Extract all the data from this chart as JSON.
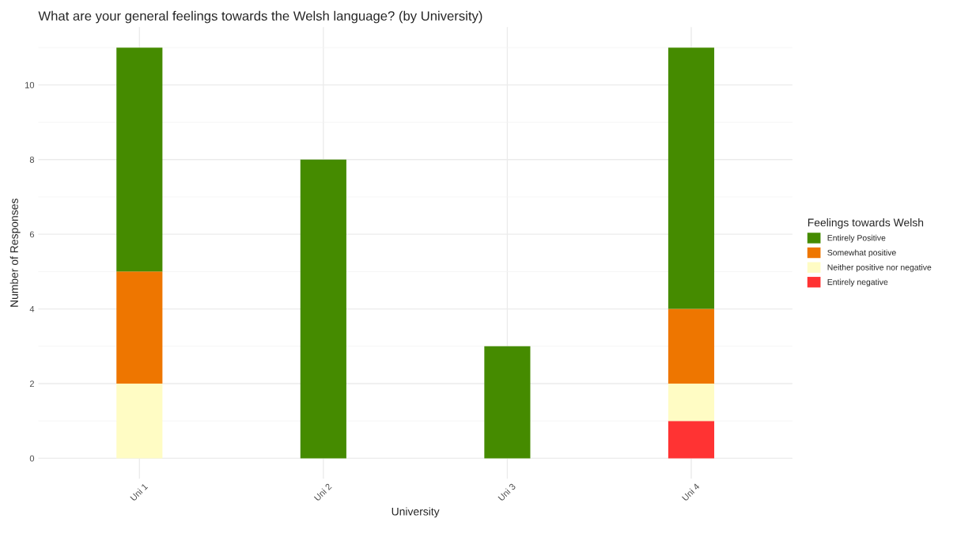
{
  "chart_data": {
    "type": "bar",
    "title": "What are your general feelings towards the Welsh language? (by University)",
    "xlabel": "University",
    "ylabel": "Number of Responses",
    "legend_title": "Feelings towards Welsh",
    "categories": [
      "Uni 1",
      "Uni 2",
      "Uni 3",
      "Uni 4"
    ],
    "stacked": true,
    "series": [
      {
        "name": "Entirely negative",
        "color": "#ff3333",
        "values": [
          0,
          0,
          0,
          1
        ]
      },
      {
        "name": "Neither positive nor negative",
        "color": "#fffcc4",
        "values": [
          2,
          0,
          0,
          1
        ]
      },
      {
        "name": "Somewhat positive",
        "color": "#ee7600",
        "values": [
          3,
          0,
          0,
          2
        ]
      },
      {
        "name": "Entirely Positive",
        "color": "#458b00",
        "values": [
          6,
          8,
          3,
          7
        ]
      }
    ],
    "ylim": [
      -0.55,
      11.55
    ],
    "yticks": [
      0,
      2,
      4,
      6,
      8,
      10
    ],
    "grid": true,
    "legend": "right"
  }
}
